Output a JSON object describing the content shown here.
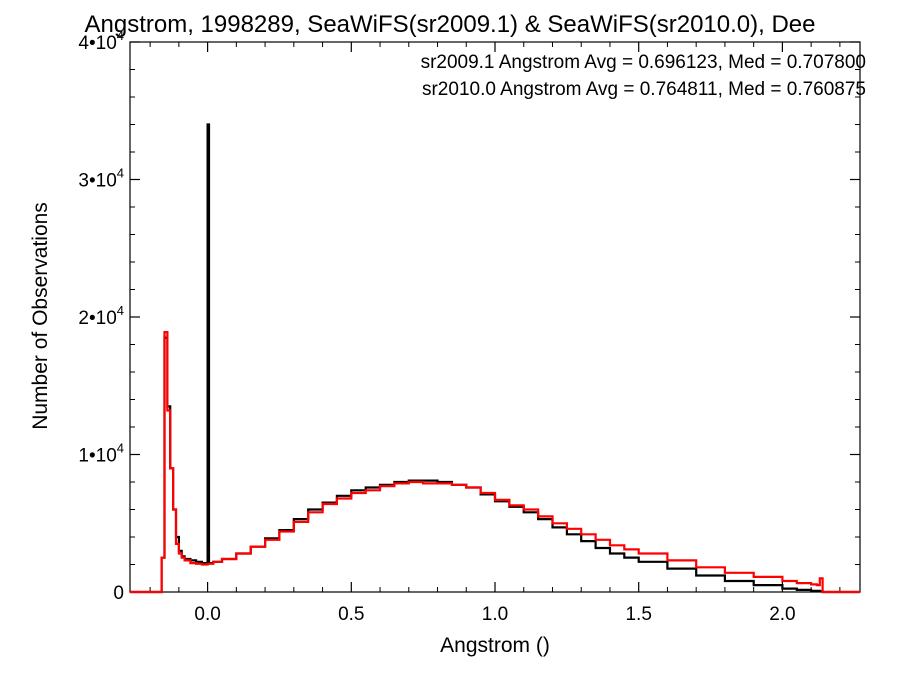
{
  "chart_data": {
    "type": "line",
    "step": true,
    "title": "Angstrom, 1998289, SeaWiFS(sr2009.1) & SeaWiFS(sr2010.0), Dee",
    "xlabel": "Angstrom ()",
    "ylabel": "Number of Observations",
    "xlim": [
      -0.27,
      2.27
    ],
    "ylim": [
      0,
      40000
    ],
    "xticks": [
      0.0,
      0.5,
      1.0,
      1.5,
      2.0
    ],
    "xtick_labels": [
      "0.0",
      "0.5",
      "1.0",
      "1.5",
      "2.0"
    ],
    "yticks": [
      0,
      10000,
      20000,
      30000,
      40000
    ],
    "ytick_labels": [
      {
        "base": "0",
        "exp": ""
      },
      {
        "base": "1•10",
        "exp": "4"
      },
      {
        "base": "2•10",
        "exp": "4"
      },
      {
        "base": "3•10",
        "exp": "4"
      },
      {
        "base": "4•10",
        "exp": "4"
      }
    ],
    "grid": false,
    "legend_position": "top-right",
    "annotations": [
      {
        "text": "sr2009.1 Angstrom Avg = 0.696123, Med = 0.707800",
        "color": "#000000"
      },
      {
        "text": "sr2010.0 Angstrom Avg = 0.764811, Med = 0.760875",
        "color": "#ff0000"
      }
    ],
    "series": [
      {
        "name": "sr2009.1",
        "color": "#000000",
        "x": [
          -0.27,
          -0.17,
          -0.16,
          -0.15,
          -0.14,
          -0.13,
          -0.12,
          -0.11,
          -0.1,
          -0.09,
          -0.08,
          -0.06,
          -0.04,
          -0.02,
          -0.005,
          0.0,
          0.005,
          0.02,
          0.05,
          0.1,
          0.15,
          0.2,
          0.25,
          0.3,
          0.35,
          0.4,
          0.45,
          0.5,
          0.55,
          0.6,
          0.65,
          0.7,
          0.75,
          0.8,
          0.85,
          0.9,
          0.95,
          1.0,
          1.05,
          1.1,
          1.15,
          1.2,
          1.25,
          1.3,
          1.35,
          1.4,
          1.45,
          1.5,
          1.6,
          1.7,
          1.8,
          1.9,
          2.0,
          2.05,
          2.1,
          2.13,
          2.14,
          2.27
        ],
        "y": [
          0,
          0,
          2500,
          18500,
          13500,
          9000,
          6000,
          4000,
          3000,
          2600,
          2400,
          2300,
          2200,
          2100,
          2100,
          34000,
          2100,
          2200,
          2400,
          2800,
          3300,
          3900,
          4500,
          5300,
          6000,
          6500,
          7000,
          7400,
          7600,
          7800,
          8000,
          8100,
          8100,
          8000,
          7800,
          7600,
          7100,
          6600,
          6200,
          5800,
          5300,
          4700,
          4200,
          3700,
          3200,
          2800,
          2500,
          2200,
          1700,
          1200,
          800,
          500,
          250,
          150,
          80,
          50,
          0,
          0
        ]
      },
      {
        "name": "sr2010.0",
        "color": "#ff0000",
        "x": [
          -0.27,
          -0.17,
          -0.16,
          -0.15,
          -0.14,
          -0.13,
          -0.12,
          -0.11,
          -0.1,
          -0.09,
          -0.08,
          -0.06,
          -0.04,
          -0.02,
          0.0,
          0.02,
          0.05,
          0.1,
          0.15,
          0.2,
          0.25,
          0.3,
          0.35,
          0.4,
          0.45,
          0.5,
          0.55,
          0.6,
          0.65,
          0.7,
          0.75,
          0.8,
          0.85,
          0.9,
          0.95,
          1.0,
          1.05,
          1.1,
          1.15,
          1.2,
          1.25,
          1.3,
          1.35,
          1.4,
          1.45,
          1.5,
          1.6,
          1.7,
          1.8,
          1.9,
          2.0,
          2.05,
          2.1,
          2.12,
          2.13,
          2.14,
          2.27
        ],
        "y": [
          0,
          0,
          2500,
          18900,
          13200,
          9000,
          6000,
          3500,
          2800,
          2500,
          2300,
          2100,
          2050,
          2000,
          2050,
          2200,
          2400,
          2800,
          3300,
          3800,
          4400,
          5100,
          5800,
          6400,
          6800,
          7200,
          7400,
          7700,
          7900,
          8000,
          7900,
          7900,
          7800,
          7600,
          7200,
          6700,
          6300,
          6000,
          5500,
          5000,
          4600,
          4200,
          3800,
          3400,
          3100,
          2800,
          2300,
          1800,
          1400,
          1100,
          800,
          650,
          550,
          500,
          1000,
          0,
          0
        ]
      }
    ]
  }
}
